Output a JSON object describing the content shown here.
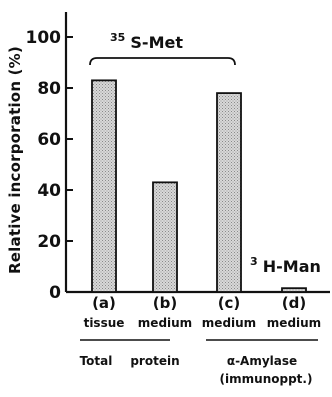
{
  "chart_data": {
    "type": "bar",
    "categories": [
      "(a)",
      "(b)",
      "(c)",
      "(d)"
    ],
    "category_sublabels": [
      "tissue",
      "medium",
      "medium",
      "medium"
    ],
    "values": [
      83,
      43,
      78,
      1.5
    ],
    "ylabel": "Relative incorporation (%)",
    "ylim": [
      0,
      100
    ],
    "yticks": [
      "0",
      "20",
      "40",
      "60",
      "80",
      "100"
    ],
    "ytick_values": [
      0,
      20,
      40,
      60,
      80,
      100
    ],
    "grid": false,
    "bar_fill": "#cfcfcf",
    "annotations": {
      "met_iso": "35",
      "met_label": "S-Met",
      "man_iso": "3",
      "man_label": "H-Man"
    },
    "groups": {
      "total_protein_left": "Total",
      "total_protein_right": "protein",
      "amylase": "α-Amylase",
      "amylase_sub": "(immunoppt.)"
    }
  }
}
